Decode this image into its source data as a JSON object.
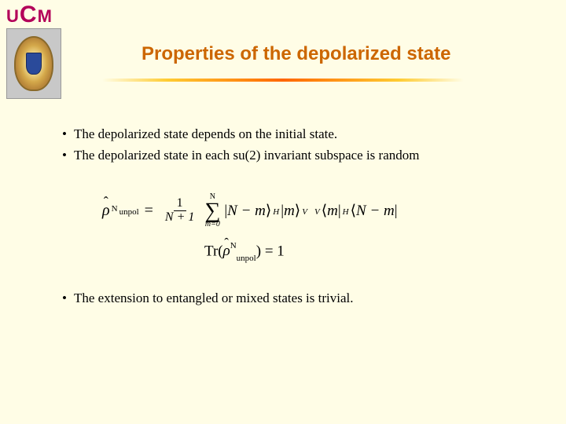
{
  "header": {
    "logo_text_u": "U",
    "logo_text_c": "C",
    "logo_text_m": "M",
    "title": "Properties of the depolarized state"
  },
  "bullets_top": [
    "The depolarized state depends on the initial state.",
    "The depolarized state in each su(2) invariant subspace is random"
  ],
  "equations": {
    "rho_label": "ρ",
    "rho_sub": "unpol",
    "rho_sup": "N",
    "frac_num": "1",
    "frac_den": "N + 1",
    "sum_top": "N",
    "sum_bottom": "m=0",
    "ket1": "N − m",
    "ket1_sub": "H",
    "ket2": "m",
    "ket2_sub": "V",
    "bra1_presub": "V",
    "bra1": "m",
    "bra2_presub": "H",
    "bra2": "N − m",
    "trace_label": "Tr",
    "trace_rhs": "= 1"
  },
  "bullets_bottom": [
    "The extension to entangled or mixed states is trivial."
  ],
  "colors": {
    "background": "#fffde6",
    "title": "#cc6600",
    "logo_text": "#b30059"
  }
}
